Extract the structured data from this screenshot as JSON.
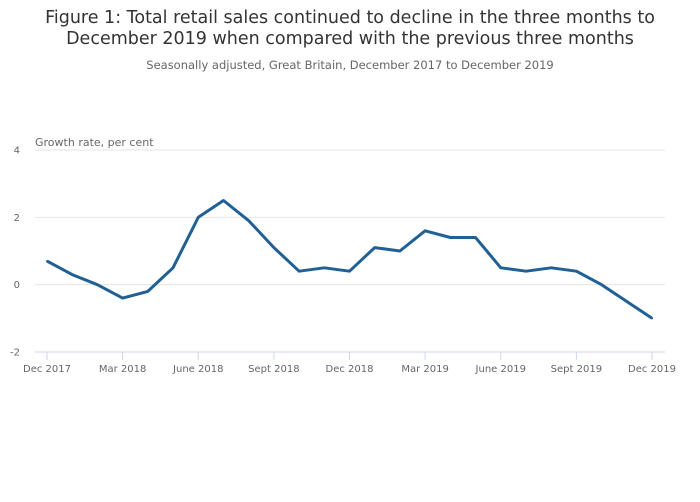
{
  "chart_data": {
    "type": "line",
    "title": "Figure 1: Total retail sales continued to decline in the three months to December 2019 when compared with the previous three months",
    "subtitle": "Seasonally adjusted, Great Britain, December 2017 to December 2019",
    "ylabel": "Growth rate, per cent",
    "xlabel": "",
    "ylim": [
      -2,
      4
    ],
    "yticks": [
      "-2",
      "0",
      "2",
      "4"
    ],
    "ytick_values": [
      -2,
      0,
      2,
      4
    ],
    "xtick_labels": [
      "Dec 2017",
      "Mar 2018",
      "June 2018",
      "Sept 2018",
      "Dec 2018",
      "Mar 2019",
      "June 2019",
      "Sept 2019",
      "Dec 2019"
    ],
    "grid": true,
    "color": "#206095",
    "x": [
      "Dec 2017",
      "Jan 2018",
      "Feb 2018",
      "Mar 2018",
      "Apr 2018",
      "May 2018",
      "Jun 2018",
      "Jul 2018",
      "Aug 2018",
      "Sep 2018",
      "Oct 2018",
      "Nov 2018",
      "Dec 2018",
      "Jan 2019",
      "Feb 2019",
      "Mar 2019",
      "Apr 2019",
      "May 2019",
      "Jun 2019",
      "Jul 2019",
      "Aug 2019",
      "Sep 2019",
      "Oct 2019",
      "Nov 2019",
      "Dec 2019"
    ],
    "series": [
      {
        "values": [
          0.7,
          0.3,
          0.0,
          -0.4,
          -0.2,
          0.5,
          2.0,
          2.5,
          1.9,
          1.1,
          0.4,
          0.5,
          0.4,
          1.1,
          1.0,
          1.6,
          1.4,
          1.4,
          0.5,
          0.4,
          0.5,
          0.4,
          0.0,
          -0.5,
          -1.0
        ]
      }
    ]
  }
}
